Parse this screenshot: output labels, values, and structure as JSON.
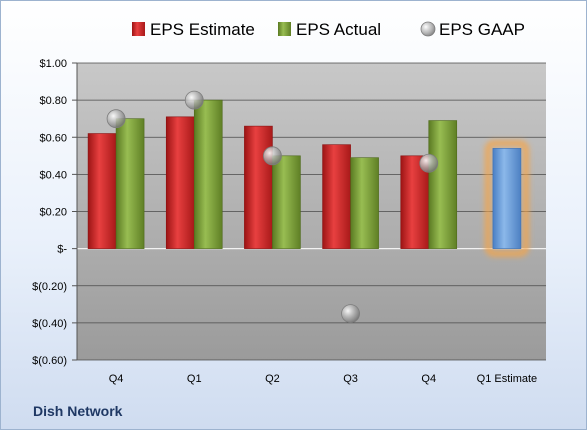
{
  "footer": {
    "company": "Dish Network"
  },
  "colors": {
    "estimate": "#d92b2b",
    "actual": "#7fa13a",
    "forecast": "#6fa0dc",
    "gaap": "#9a9a9a",
    "highlight": "#f5a54a",
    "plot_top": "#c8c8c8",
    "plot_bottom": "#9b9b9b"
  },
  "chart_data": {
    "type": "bar",
    "categories": [
      "Q4",
      "Q1",
      "Q2",
      "Q3",
      "Q4",
      "Q1 Estimate"
    ],
    "series": [
      {
        "name": "EPS Estimate",
        "kind": "bar",
        "values": [
          0.62,
          0.71,
          0.66,
          0.56,
          0.5,
          null
        ]
      },
      {
        "name": "EPS Actual",
        "kind": "bar",
        "values": [
          0.7,
          0.8,
          0.5,
          0.49,
          0.69,
          0.54
        ]
      },
      {
        "name": "EPS GAAP",
        "kind": "scatter",
        "values": [
          0.7,
          0.8,
          0.5,
          -0.35,
          0.46,
          null
        ]
      }
    ],
    "ylim": [
      -0.6,
      1.0
    ],
    "yticks": [
      1.0,
      0.8,
      0.6,
      0.4,
      0.2,
      0.0,
      -0.2,
      -0.4,
      -0.6
    ],
    "ytick_labels": [
      "$1.00",
      "$0.80",
      "$0.60",
      "$0.40",
      "$0.20",
      "$-",
      "$(0.20)",
      "$(0.40)",
      "$(0.60)"
    ],
    "grid": true,
    "legend": "top"
  }
}
